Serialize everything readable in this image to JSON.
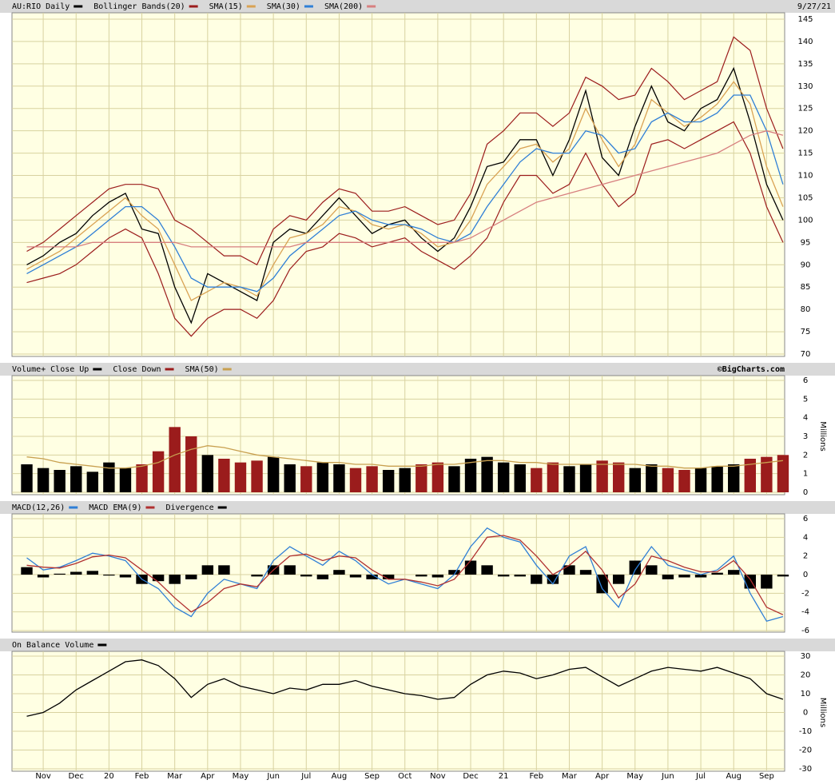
{
  "chart_data": [
    {
      "type": "line",
      "date": "9/27/21",
      "ylim": [
        70,
        145
      ],
      "yticks": [
        70,
        75,
        80,
        85,
        90,
        95,
        100,
        105,
        110,
        115,
        120,
        125,
        130,
        135,
        140,
        145
      ],
      "grid": true,
      "series": [
        {
          "name": "AU:RIO Daily",
          "type": "line",
          "color": "#000000",
          "values": [
            90,
            92,
            95,
            97,
            101,
            104,
            106,
            98,
            97,
            85,
            77,
            88,
            86,
            84,
            82,
            95,
            98,
            97,
            101,
            105,
            101,
            97,
            99,
            100,
            96,
            93,
            96,
            103,
            112,
            113,
            118,
            118,
            110,
            118,
            129,
            114,
            110,
            121,
            130,
            122,
            120,
            125,
            127,
            134,
            122,
            108,
            100
          ]
        },
        {
          "name": "Bollinger Bands(20)",
          "type": "band",
          "color": "#9b1c1c",
          "upper": [
            93,
            95,
            98,
            101,
            104,
            107,
            108,
            108,
            107,
            100,
            98,
            95,
            92,
            92,
            90,
            98,
            101,
            100,
            104,
            107,
            106,
            102,
            102,
            103,
            101,
            99,
            100,
            106,
            117,
            120,
            124,
            124,
            121,
            124,
            132,
            130,
            127,
            128,
            134,
            131,
            127,
            129,
            131,
            141,
            138,
            125,
            116
          ],
          "lower": [
            86,
            87,
            88,
            90,
            93,
            96,
            98,
            96,
            88,
            78,
            74,
            78,
            80,
            80,
            78,
            82,
            89,
            93,
            94,
            97,
            96,
            94,
            95,
            96,
            93,
            91,
            89,
            92,
            96,
            104,
            110,
            110,
            106,
            108,
            115,
            108,
            103,
            106,
            117,
            118,
            116,
            118,
            120,
            122,
            115,
            103,
            95
          ]
        },
        {
          "name": "SMA(15)",
          "type": "line",
          "color": "#d9a253",
          "values": [
            89,
            91,
            93,
            96,
            99,
            102,
            105,
            101,
            98,
            90,
            82,
            84,
            86,
            85,
            83,
            90,
            96,
            97,
            99,
            103,
            102,
            99,
            98,
            99,
            97,
            94,
            95,
            100,
            108,
            112,
            116,
            117,
            113,
            116,
            125,
            118,
            112,
            117,
            127,
            124,
            121,
            123,
            126,
            131,
            126,
            112,
            103
          ]
        },
        {
          "name": "SMA(30)",
          "type": "line",
          "color": "#2f7fd6",
          "values": [
            88,
            90,
            92,
            94,
            97,
            100,
            103,
            103,
            100,
            94,
            87,
            85,
            85,
            85,
            84,
            87,
            92,
            95,
            98,
            101,
            102,
            100,
            99,
            99,
            98,
            96,
            95,
            97,
            103,
            108,
            113,
            116,
            115,
            115,
            120,
            119,
            115,
            116,
            122,
            124,
            122,
            122,
            124,
            128,
            128,
            120,
            108
          ]
        },
        {
          "name": "SMA(200)",
          "type": "line",
          "color": "#d77f7f",
          "values": [
            94,
            94,
            94,
            94,
            95,
            95,
            95,
            95,
            95,
            95,
            94,
            94,
            94,
            94,
            94,
            94,
            94,
            95,
            95,
            95,
            95,
            95,
            95,
            95,
            95,
            95,
            95,
            96,
            98,
            100,
            102,
            104,
            105,
            106,
            107,
            108,
            109,
            110,
            111,
            112,
            113,
            114,
            115,
            117,
            119,
            120,
            119
          ]
        }
      ]
    },
    {
      "type": "bar",
      "title": "Volume+",
      "source": "©BigCharts.com",
      "ylabel": "Millions",
      "ylim": [
        0,
        6
      ],
      "yticks": [
        0,
        1,
        2,
        3,
        4,
        5,
        6
      ],
      "grid": true,
      "series": [
        {
          "name": "Close Up",
          "type": "bar",
          "color": "#000000",
          "values": [
            1.5,
            1.3,
            1.2,
            1.4,
            1.1,
            1.6,
            1.3,
            null,
            null,
            null,
            null,
            2.0,
            null,
            null,
            null,
            1.9,
            1.5,
            null,
            1.6,
            1.5,
            null,
            null,
            1.2,
            1.3,
            null,
            null,
            1.4,
            1.8,
            1.9,
            1.6,
            1.5,
            null,
            null,
            1.4,
            1.5,
            null,
            null,
            1.3,
            1.5,
            null,
            null,
            1.3,
            1.4,
            1.5,
            null,
            null,
            null
          ]
        },
        {
          "name": "Close Down",
          "type": "bar",
          "color": "#9b1c1c",
          "values": [
            null,
            null,
            null,
            null,
            null,
            null,
            null,
            1.5,
            2.2,
            3.5,
            3.0,
            null,
            1.8,
            1.6,
            1.7,
            null,
            null,
            1.4,
            null,
            null,
            1.3,
            1.4,
            null,
            null,
            1.5,
            1.6,
            null,
            null,
            null,
            null,
            null,
            1.3,
            1.6,
            null,
            null,
            1.7,
            1.6,
            null,
            null,
            1.3,
            1.2,
            null,
            null,
            null,
            1.8,
            1.9,
            2.0
          ]
        },
        {
          "name": "SMA(50)",
          "type": "line",
          "color": "#c8a050",
          "values": [
            1.9,
            1.8,
            1.6,
            1.5,
            1.4,
            1.3,
            1.3,
            1.4,
            1.6,
            2.0,
            2.3,
            2.5,
            2.4,
            2.2,
            2.0,
            1.9,
            1.8,
            1.7,
            1.6,
            1.6,
            1.5,
            1.5,
            1.4,
            1.4,
            1.4,
            1.5,
            1.5,
            1.6,
            1.7,
            1.7,
            1.6,
            1.6,
            1.5,
            1.5,
            1.5,
            1.5,
            1.5,
            1.5,
            1.4,
            1.4,
            1.3,
            1.3,
            1.4,
            1.4,
            1.5,
            1.6,
            1.7
          ]
        }
      ]
    },
    {
      "type": "line",
      "ylim": [
        -6,
        6
      ],
      "yticks": [
        -6,
        -4,
        -2,
        0,
        2,
        4,
        6
      ],
      "grid": true,
      "series": [
        {
          "name": "MACD(12,26)",
          "type": "line",
          "color": "#2f7fd6",
          "values": [
            1.8,
            0.5,
            0.8,
            1.5,
            2.3,
            2.0,
            1.5,
            -0.5,
            -1.5,
            -3.5,
            -4.5,
            -2,
            -0.5,
            -1.0,
            -1.5,
            1.5,
            3.0,
            2.0,
            1.0,
            2.5,
            1.5,
            0.0,
            -1.0,
            -0.5,
            -1.0,
            -1.5,
            0.0,
            3.0,
            5.0,
            4.0,
            3.5,
            1.0,
            -1.0,
            2.0,
            3.0,
            -1.5,
            -3.5,
            0.5,
            3.0,
            1.0,
            0.5,
            0.0,
            0.5,
            2.0,
            -2.0,
            -5.0,
            -4.5
          ]
        },
        {
          "name": "MACD EMA(9)",
          "type": "line",
          "color": "#b03030",
          "values": [
            1.0,
            0.8,
            0.7,
            1.2,
            1.9,
            2.1,
            1.8,
            0.5,
            -0.8,
            -2.5,
            -4.0,
            -3.0,
            -1.5,
            -1.0,
            -1.3,
            0.5,
            2.0,
            2.2,
            1.5,
            2.0,
            1.8,
            0.5,
            -0.5,
            -0.5,
            -0.8,
            -1.2,
            -0.5,
            1.5,
            4.0,
            4.2,
            3.7,
            2.0,
            0.0,
            1.0,
            2.5,
            0.5,
            -2.5,
            -1.0,
            2.0,
            1.5,
            0.8,
            0.3,
            0.3,
            1.5,
            -0.5,
            -3.5,
            -4.3
          ]
        },
        {
          "name": "Divergence",
          "type": "bar",
          "color": "#000000",
          "values": [
            0.8,
            -0.3,
            0.1,
            0.3,
            0.4,
            -0.1,
            -0.3,
            -1.0,
            -0.7,
            -1.0,
            -0.5,
            1.0,
            1.0,
            0.0,
            -0.2,
            1.0,
            1.0,
            -0.2,
            -0.5,
            0.5,
            -0.3,
            -0.5,
            -0.5,
            0.0,
            -0.2,
            -0.3,
            0.5,
            1.5,
            1.0,
            -0.2,
            -0.2,
            -1.0,
            -1.0,
            1.0,
            0.5,
            -2.0,
            -1.0,
            1.5,
            1.0,
            -0.5,
            -0.3,
            -0.3,
            0.2,
            0.5,
            -1.5,
            -1.5,
            -0.2
          ]
        }
      ]
    },
    {
      "type": "line",
      "ylabel": "Millions",
      "ylim": [
        -30,
        30
      ],
      "yticks": [
        -30,
        -20,
        -10,
        0,
        10,
        20,
        30
      ],
      "grid": true,
      "categories": [
        null,
        "Nov",
        null,
        "Dec",
        null,
        "20",
        null,
        "Feb",
        null,
        "Mar",
        null,
        "Apr",
        null,
        "May",
        null,
        "Jun",
        null,
        "Jul",
        null,
        "Aug",
        null,
        "Sep",
        null,
        "Oct",
        null,
        "Nov",
        null,
        "Dec",
        null,
        "21",
        null,
        "Feb",
        null,
        "Mar",
        null,
        "Apr",
        null,
        "May",
        null,
        "Jun",
        null,
        "Jul",
        null,
        "Aug",
        null,
        "Sep",
        null
      ],
      "series": [
        {
          "name": "On Balance Volume",
          "type": "line",
          "color": "#000000",
          "values": [
            -2,
            0,
            5,
            12,
            17,
            22,
            27,
            28,
            25,
            18,
            8,
            15,
            18,
            14,
            12,
            10,
            13,
            12,
            15,
            15,
            17,
            14,
            12,
            10,
            9,
            7,
            8,
            15,
            20,
            22,
            21,
            18,
            20,
            23,
            24,
            19,
            14,
            18,
            22,
            24,
            23,
            22,
            24,
            21,
            18,
            10,
            7
          ]
        }
      ]
    }
  ]
}
